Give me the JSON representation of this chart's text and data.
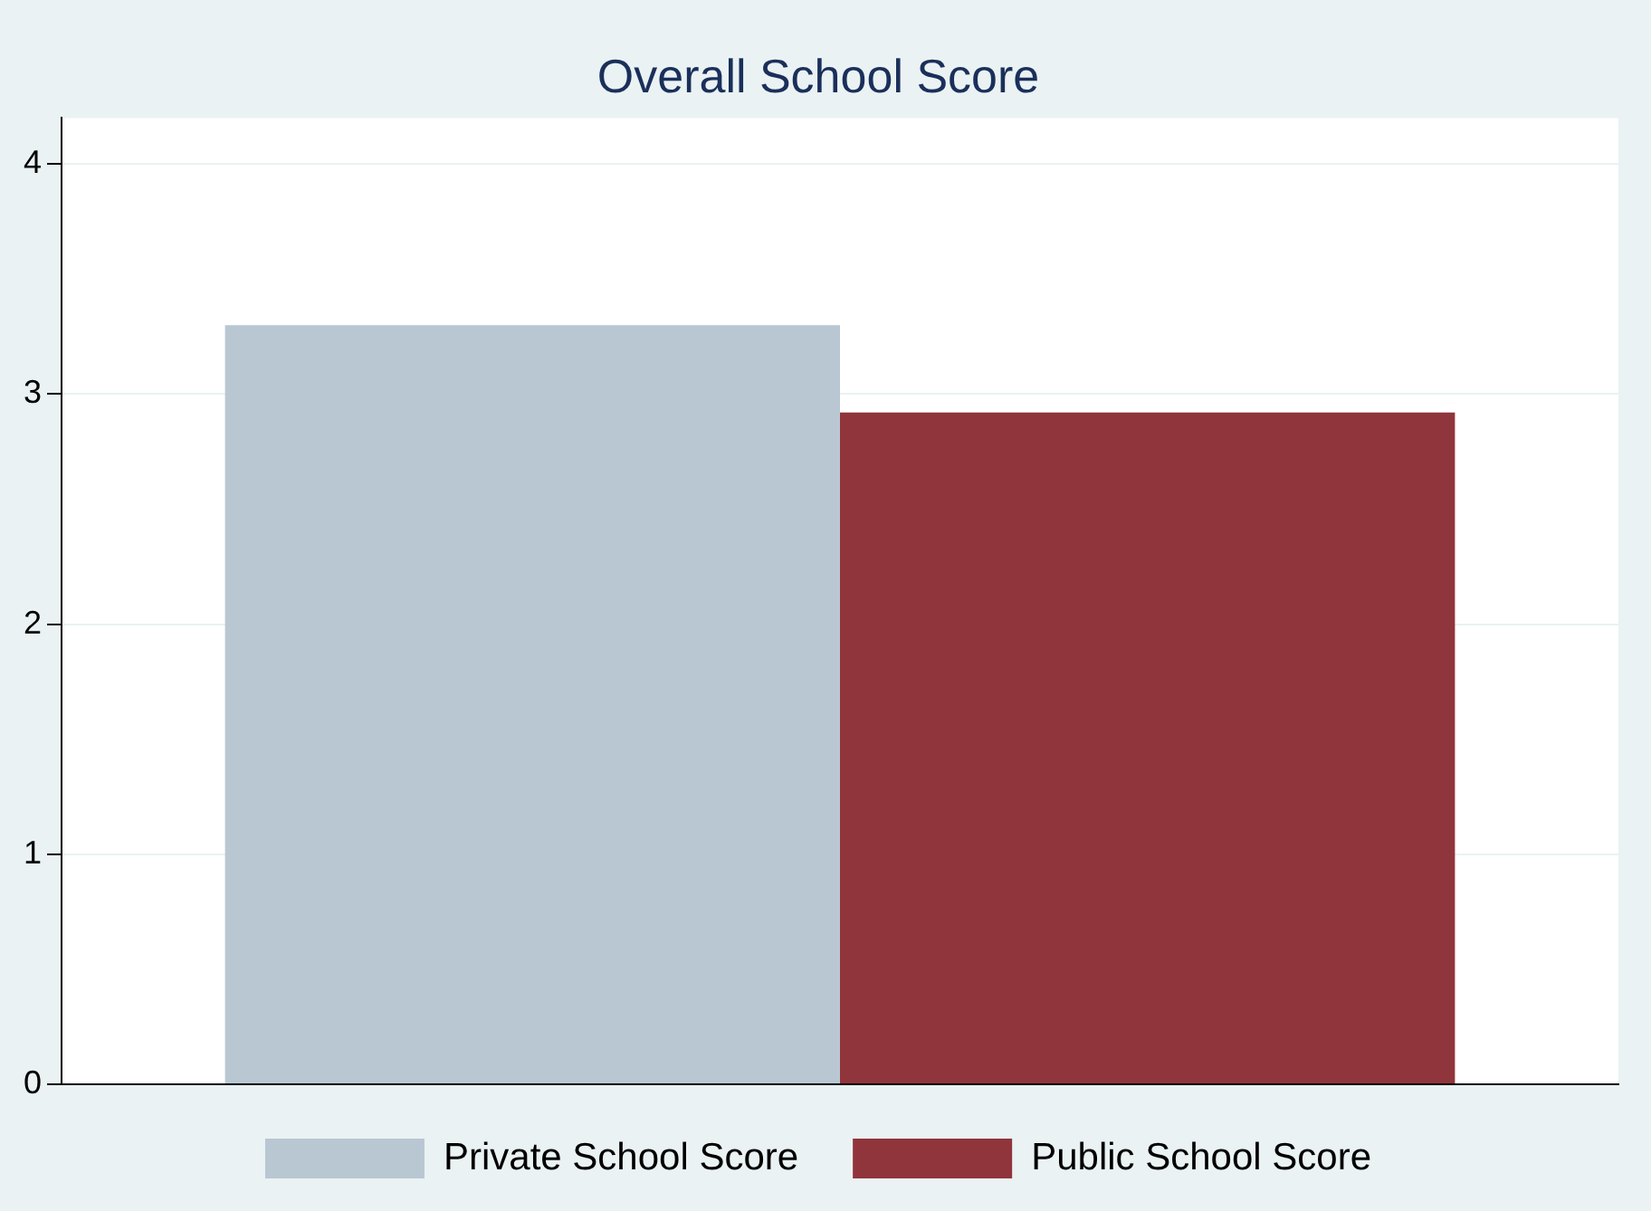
{
  "chart_data": {
    "type": "bar",
    "title": "Overall School Score",
    "categories": [
      null
    ],
    "series": [
      {
        "name": "Private School Score",
        "color": "#b9c7d3",
        "values": [
          3.3
        ]
      },
      {
        "name": "Public School Score",
        "color": "#90353b",
        "values": [
          2.92
        ]
      }
    ],
    "ylim": [
      0,
      4.2
    ],
    "yticks": [
      0,
      1,
      2,
      3,
      4
    ],
    "grid": "y",
    "legend": "bottom"
  }
}
